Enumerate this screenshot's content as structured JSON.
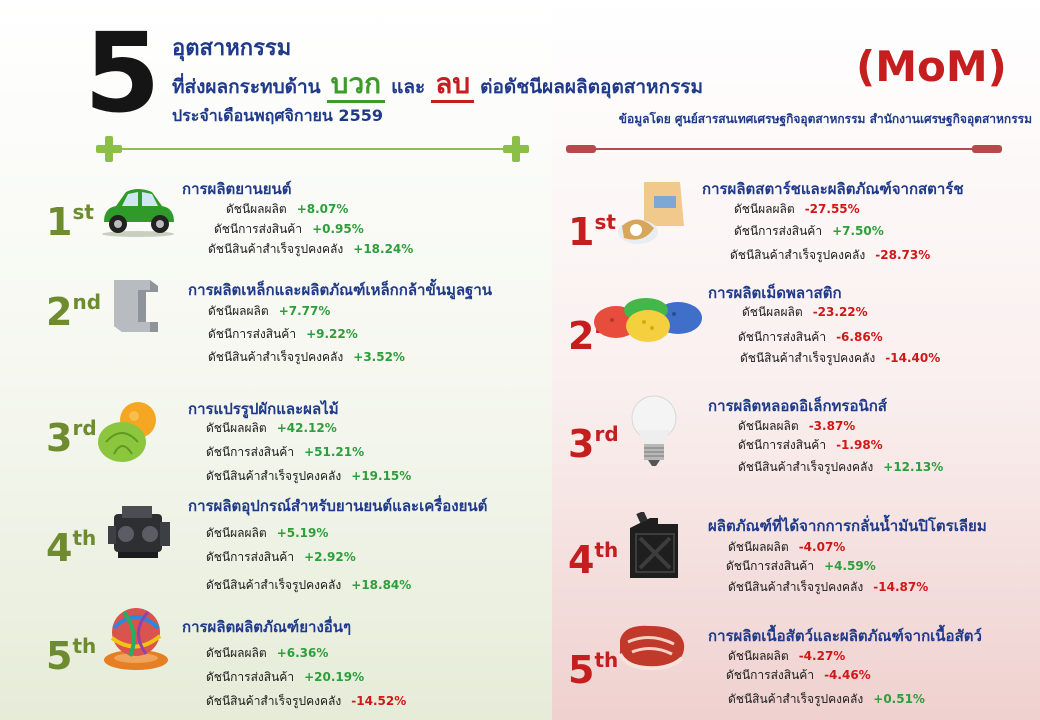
{
  "header": {
    "number": "5",
    "line1": "อุตสาหกรรม",
    "line2_prefix": "ที่ส่งผลกระทบด้าน",
    "positive_word": "บวก",
    "and_word": "และ",
    "negative_word": "ลบ",
    "line2_suffix": "ต่อดัชนีผลผลิตอุตสาหกรรม",
    "month": "ประจำเดือนพฤศจิกายน 2559",
    "mom": "(MoM)",
    "source": "ข้อมูลโดย ศูนย์สารสนเทศเศรษฐกิจอุตสาหกรรม สำนักงานเศรษฐกิจอุตสาหกรรม"
  },
  "colors": {
    "title": "#1f3a8a",
    "positive": "#3e9b29",
    "negative": "#c41e1e"
  },
  "positive": [
    {
      "rank": "1",
      "suffix": "st",
      "icon": "car-icon",
      "title": "การผลิตยานยนต์",
      "stats": [
        {
          "label": "ดัชนีผลผลิต",
          "value": "+8.07%",
          "dir": "up"
        },
        {
          "label": "ดัชนีการส่งสินค้า",
          "value": "+0.95%",
          "dir": "up"
        },
        {
          "label": "ดัชนีสินค้าสำเร็จรูปคงคลัง",
          "value": "+18.24%",
          "dir": "up"
        }
      ]
    },
    {
      "rank": "2",
      "suffix": "nd",
      "icon": "steel-beam-icon",
      "title": "การผลิตเหล็กและผลิตภัณฑ์เหล็กกล้าขั้นมูลฐาน",
      "stats": [
        {
          "label": "ดัชนีผลผลิต",
          "value": "+7.77%",
          "dir": "up"
        },
        {
          "label": "ดัชนีการส่งสินค้า",
          "value": "+9.22%",
          "dir": "up"
        },
        {
          "label": "ดัชนีสินค้าสำเร็จรูปคงคลัง",
          "value": "+3.52%",
          "dir": "up"
        }
      ]
    },
    {
      "rank": "3",
      "suffix": "rd",
      "icon": "fruit-vegetable-icon",
      "title": "การแปรรูปผักและผลไม้",
      "stats": [
        {
          "label": "ดัชนีผลผลิต",
          "value": "+42.12%",
          "dir": "up"
        },
        {
          "label": "ดัชนีการส่งสินค้า",
          "value": "+51.21%",
          "dir": "up"
        },
        {
          "label": "ดัชนีสินค้าสำเร็จรูปคงคลัง",
          "value": "+19.15%",
          "dir": "up"
        }
      ]
    },
    {
      "rank": "4",
      "suffix": "th",
      "icon": "engine-icon",
      "title": "การผลิตอุปกรณ์สำหรับยานยนต์และเครื่องยนต์",
      "stats": [
        {
          "label": "ดัชนีผลผลิต",
          "value": "+5.19%",
          "dir": "up"
        },
        {
          "label": "ดัชนีการส่งสินค้า",
          "value": "+2.92%",
          "dir": "up"
        },
        {
          "label": "ดัชนีสินค้าสำเร็จรูปคงคลัง",
          "value": "+18.84%",
          "dir": "up"
        }
      ]
    },
    {
      "rank": "5",
      "suffix": "th",
      "icon": "rubber-band-ball-icon",
      "title": "การผลิตผลิตภัณฑ์ยางอื่นๆ",
      "stats": [
        {
          "label": "ดัชนีผลผลิต",
          "value": "+6.36%",
          "dir": "up"
        },
        {
          "label": "ดัชนีการส่งสินค้า",
          "value": "+20.19%",
          "dir": "up"
        },
        {
          "label": "ดัชนีสินค้าสำเร็จรูปคงคลัง",
          "value": "-14.52%",
          "dir": "down"
        }
      ]
    }
  ],
  "negative": [
    {
      "rank": "1",
      "suffix": "st",
      "icon": "starch-bag-icon",
      "title": "การผลิตสตาร์ชและผลิตภัณฑ์จากสตาร์ช",
      "stats": [
        {
          "label": "ดัชนีผลผลิต",
          "value": "-27.55%",
          "dir": "down"
        },
        {
          "label": "ดัชนีการส่งสินค้า",
          "value": "+7.50%",
          "dir": "up"
        },
        {
          "label": "ดัชนีสินค้าสำเร็จรูปคงคลัง",
          "value": "-28.73%",
          "dir": "down"
        }
      ]
    },
    {
      "rank": "2",
      "suffix": "nd",
      "icon": "plastic-pellets-icon",
      "title": "การผลิตเม็ดพลาสติก",
      "stats": [
        {
          "label": "ดัชนีผลผลิต",
          "value": "-23.22%",
          "dir": "down"
        },
        {
          "label": "ดัชนีการส่งสินค้า",
          "value": "-6.86%",
          "dir": "down"
        },
        {
          "label": "ดัชนีสินค้าสำเร็จรูปคงคลัง",
          "value": "-14.40%",
          "dir": "down"
        }
      ]
    },
    {
      "rank": "3",
      "suffix": "rd",
      "icon": "light-bulb-icon",
      "title": "การผลิตหลอดอิเล็กทรอนิกส์",
      "stats": [
        {
          "label": "ดัชนีผลผลิต",
          "value": "-3.87%",
          "dir": "down"
        },
        {
          "label": "ดัชนีการส่งสินค้า",
          "value": "-1.98%",
          "dir": "down"
        },
        {
          "label": "ดัชนีสินค้าสำเร็จรูปคงคลัง",
          "value": "+12.13%",
          "dir": "up"
        }
      ]
    },
    {
      "rank": "4",
      "suffix": "th",
      "icon": "fuel-can-icon",
      "title": "ผลิตภัณฑ์ที่ได้จากการกลั่นน้ำมันปิโตรเลียม",
      "stats": [
        {
          "label": "ดัชนีผลผลิต",
          "value": "-4.07%",
          "dir": "down"
        },
        {
          "label": "ดัชนีการส่งสินค้า",
          "value": "+4.59%",
          "dir": "up"
        },
        {
          "label": "ดัชนีสินค้าสำเร็จรูปคงคลัง",
          "value": "-14.87%",
          "dir": "down"
        }
      ]
    },
    {
      "rank": "5",
      "suffix": "th",
      "icon": "meat-icon",
      "title": "การผลิตเนื้อสัตว์และผลิตภัณฑ์จากเนื้อสัตว์",
      "stats": [
        {
          "label": "ดัชนีผลผลิต",
          "value": "-4.27%",
          "dir": "down"
        },
        {
          "label": "ดัชนีการส่งสินค้า",
          "value": "-4.46%",
          "dir": "down"
        },
        {
          "label": "ดัชนีสินค้าสำเร็จรูปคงคลัง",
          "value": "+0.51%",
          "dir": "up"
        }
      ]
    }
  ]
}
